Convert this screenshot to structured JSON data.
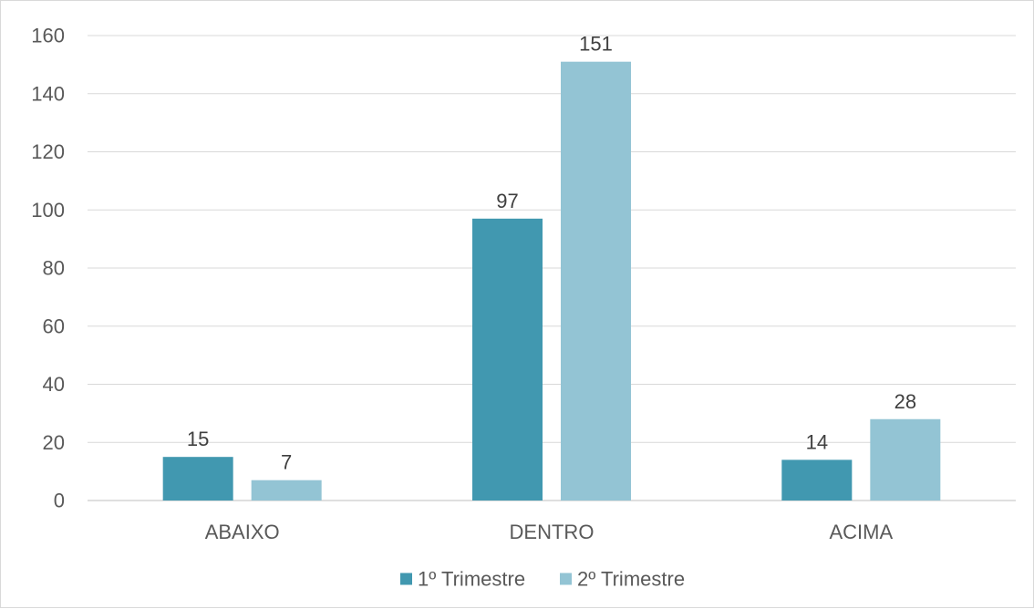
{
  "chart_data": {
    "type": "bar",
    "categories": [
      "ABAIXO",
      "DENTRO",
      "ACIMA"
    ],
    "series": [
      {
        "name": "1º Trimestre",
        "values": [
          15,
          97,
          14
        ],
        "color": "#4198b0"
      },
      {
        "name": "2º Trimestre",
        "values": [
          7,
          151,
          28
        ],
        "color": "#93c4d4"
      }
    ],
    "y_ticks": [
      0,
      20,
      40,
      60,
      80,
      100,
      120,
      140,
      160
    ],
    "ylim": [
      0,
      160
    ],
    "grid": true,
    "legend_position": "bottom",
    "data_labels": true
  }
}
